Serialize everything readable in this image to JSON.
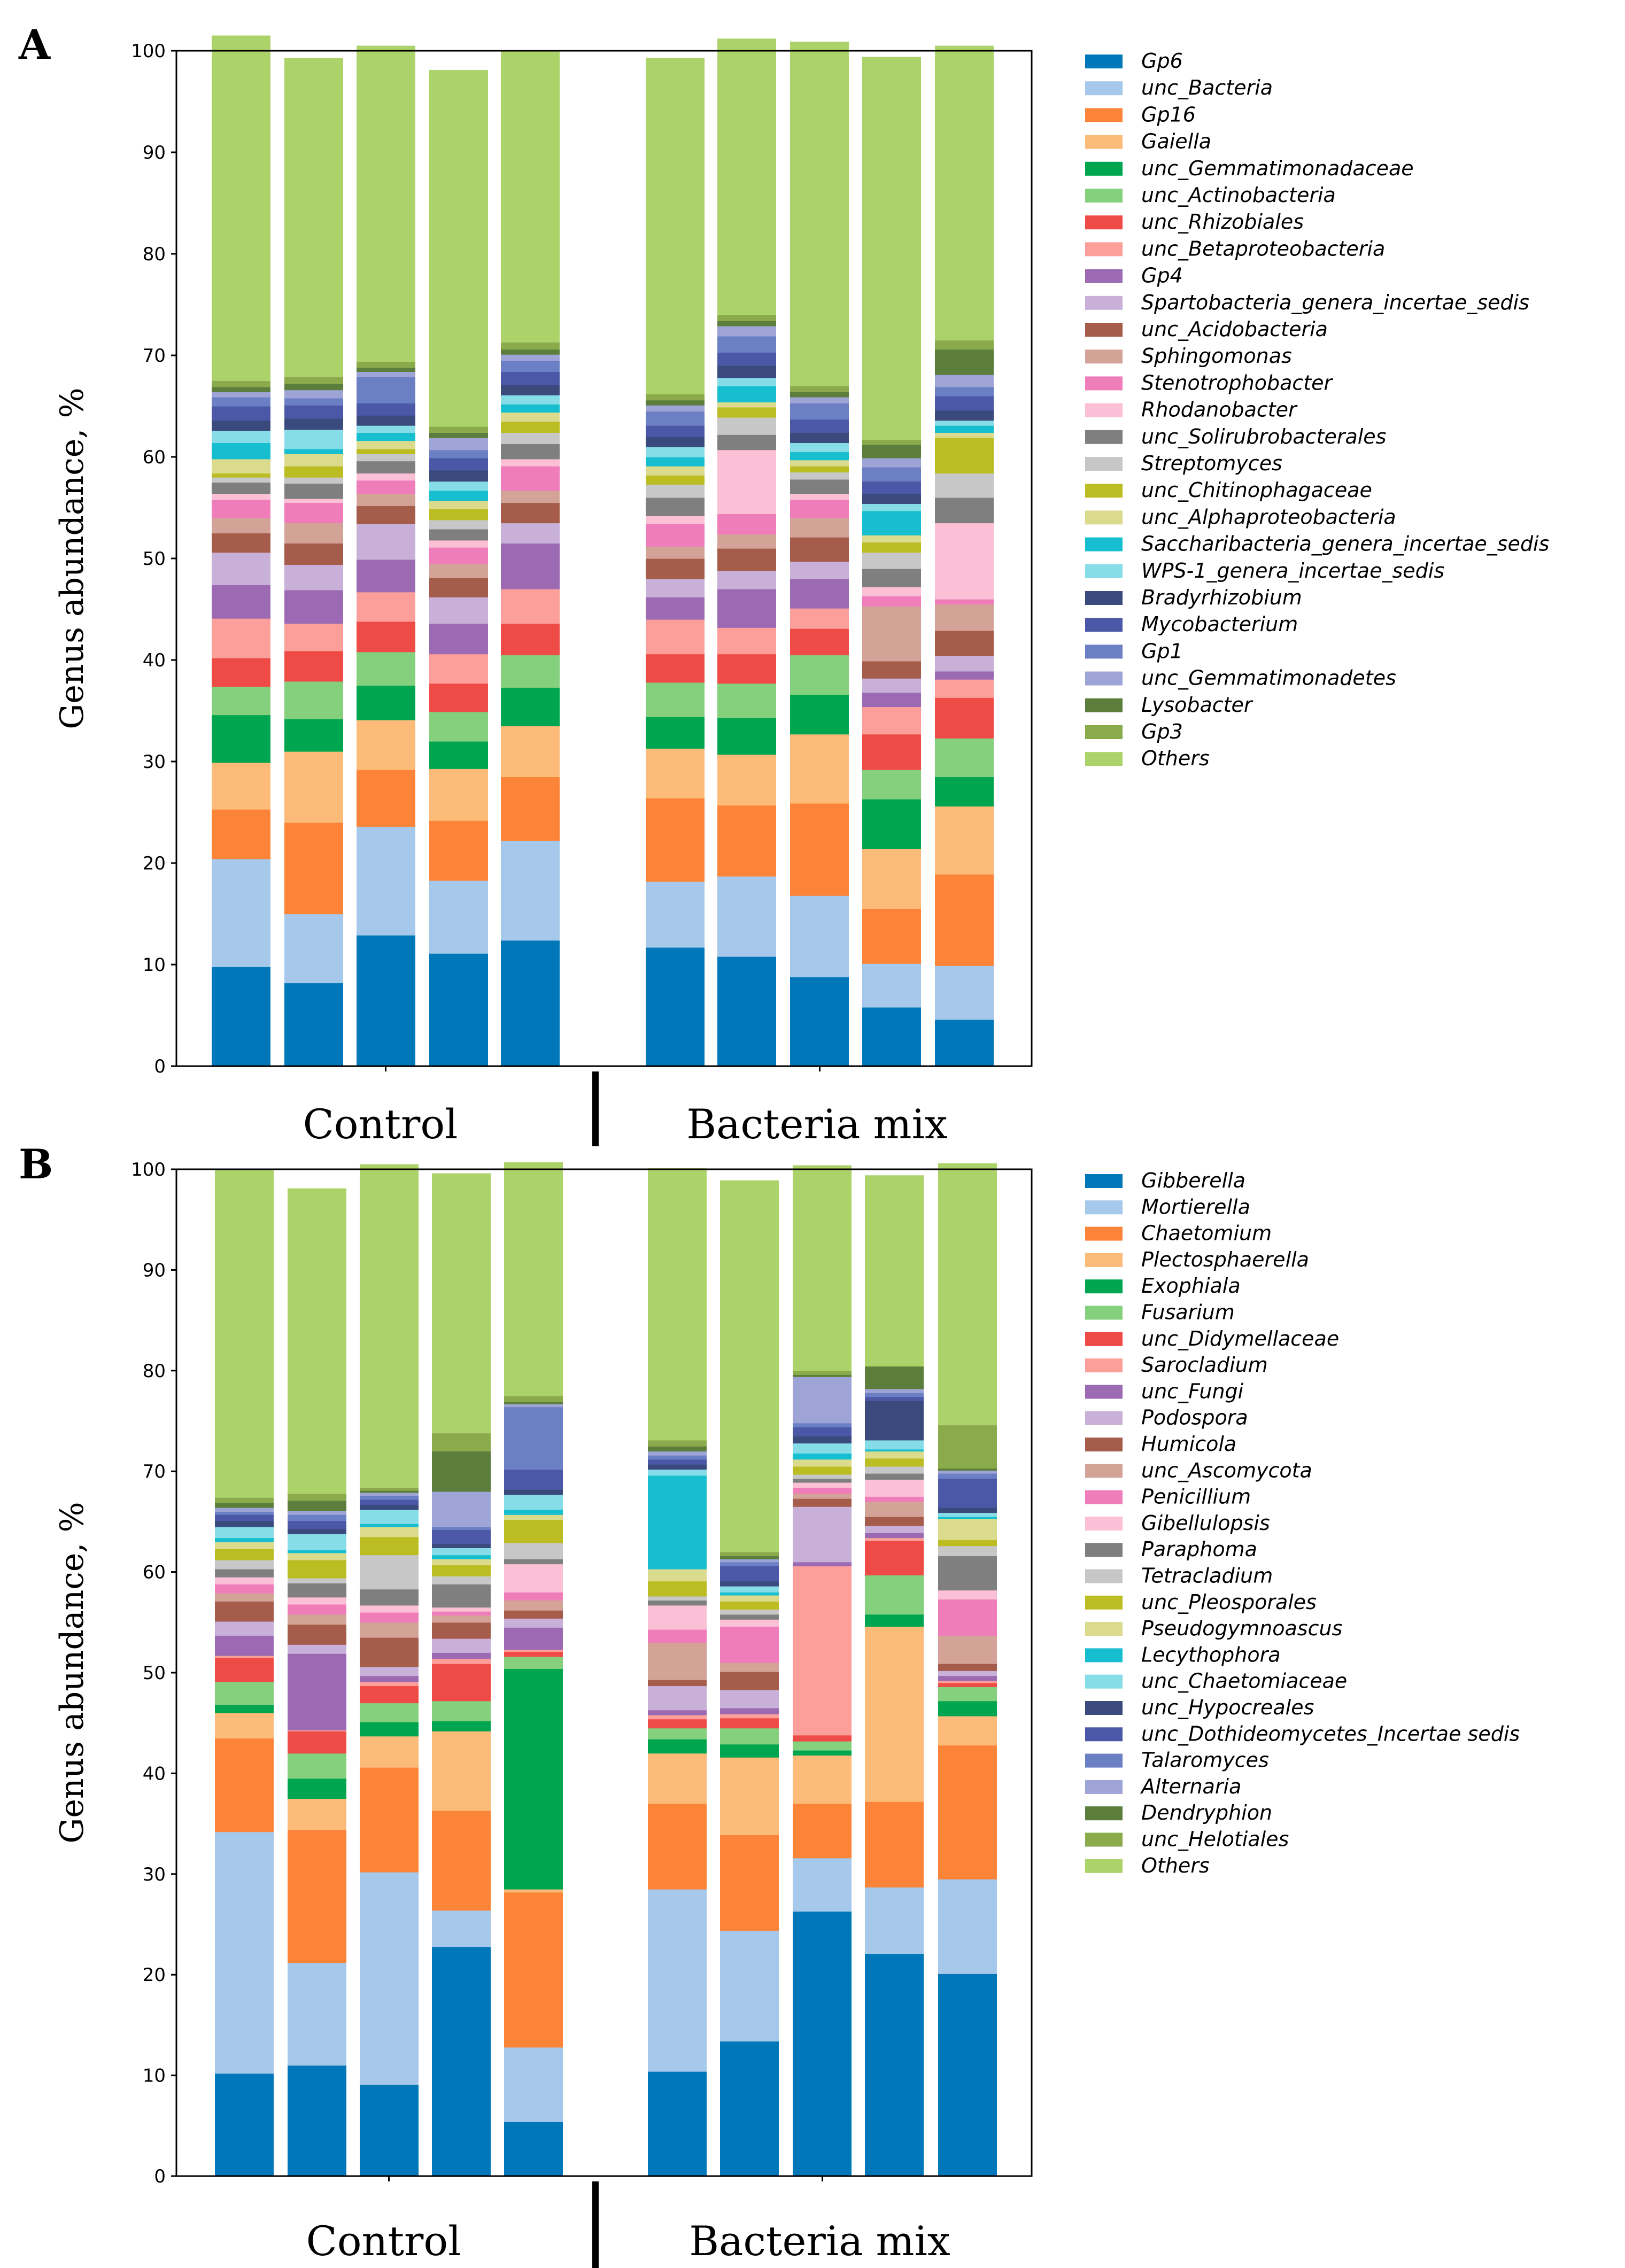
{
  "chart_data": [
    {
      "type": "bar",
      "panel_label": "A",
      "stacked": true,
      "ylabel": "Genus abundance, %",
      "ylim": [
        0,
        100
      ],
      "yticks": [
        "0",
        "10",
        "20",
        "30",
        "40",
        "50",
        "60",
        "70",
        "80",
        "90",
        "100"
      ],
      "group_labels": [
        "Control",
        "Bacteria mix"
      ],
      "bars_per_group": 5,
      "series": [
        {
          "name": "Gp6",
          "color": "#0077b8",
          "values": [
            9.8,
            8.2,
            12.9,
            11.1,
            12.4,
            11.7,
            10.8,
            8.8,
            5.8,
            4.6
          ]
        },
        {
          "name": "unc_Bacteria",
          "color": "#a6c8ea",
          "values": [
            10.6,
            6.8,
            10.7,
            7.2,
            9.8,
            6.5,
            7.9,
            8.0,
            4.3,
            5.3
          ]
        },
        {
          "name": "Gp16",
          "color": "#fc8438",
          "values": [
            4.9,
            9.0,
            5.6,
            5.9,
            6.3,
            8.2,
            7.0,
            9.1,
            5.4,
            9.0
          ]
        },
        {
          "name": "Gaiella",
          "color": "#fdbb7a",
          "values": [
            4.6,
            7.0,
            4.9,
            5.1,
            5.0,
            4.9,
            5.0,
            6.8,
            5.9,
            6.7
          ]
        },
        {
          "name": "unc_Gemmatimonadaceae",
          "color": "#00a550",
          "values": [
            4.7,
            3.2,
            3.4,
            2.7,
            3.8,
            3.1,
            3.6,
            3.9,
            4.9,
            2.9
          ]
        },
        {
          "name": "unc_Actinobacteria",
          "color": "#84d07c",
          "values": [
            2.8,
            3.7,
            3.3,
            2.9,
            3.2,
            3.4,
            3.4,
            3.9,
            2.9,
            3.8
          ]
        },
        {
          "name": "unc_Rhizobiales",
          "color": "#ef4b46",
          "values": [
            2.8,
            3.0,
            3.0,
            2.8,
            3.1,
            2.8,
            2.9,
            2.6,
            3.5,
            4.0
          ]
        },
        {
          "name": "unc_Betaproteobacteria",
          "color": "#fc9f9a",
          "values": [
            3.9,
            2.7,
            2.9,
            2.9,
            3.4,
            3.4,
            2.6,
            2.0,
            2.7,
            1.8
          ]
        },
        {
          "name": "Gp4",
          "color": "#9b6ab3",
          "values": [
            3.3,
            3.3,
            3.2,
            3.0,
            4.5,
            2.2,
            3.8,
            2.9,
            1.4,
            0.8
          ]
        },
        {
          "name": "Spartobacteria_genera_incertae_sedis",
          "color": "#c8b0d8",
          "values": [
            3.2,
            2.5,
            3.5,
            2.6,
            2.0,
            1.8,
            1.8,
            1.7,
            1.4,
            1.5
          ]
        },
        {
          "name": "unc_Acidobacteria",
          "color": "#a65c4a",
          "values": [
            1.9,
            2.1,
            1.8,
            1.9,
            2.0,
            2.0,
            2.2,
            2.4,
            1.7,
            2.5
          ]
        },
        {
          "name": "Sphingomonas",
          "color": "#d4a397",
          "values": [
            1.5,
            2.0,
            1.2,
            1.4,
            1.2,
            1.2,
            1.4,
            1.9,
            5.4,
            2.6
          ]
        },
        {
          "name": "Stenotrophobacter",
          "color": "#ef7dba",
          "values": [
            1.8,
            2.0,
            1.3,
            1.6,
            2.4,
            2.2,
            2.0,
            1.8,
            1.0,
            0.5
          ]
        },
        {
          "name": "Rhodanobacter",
          "color": "#fbbfd6",
          "values": [
            0.6,
            0.4,
            0.7,
            0.7,
            0.7,
            0.8,
            6.3,
            0.6,
            0.9,
            7.5
          ]
        },
        {
          "name": "unc_Solirubrobacterales",
          "color": "#7f7f7f",
          "values": [
            1.1,
            1.5,
            1.2,
            1.1,
            1.5,
            1.8,
            1.5,
            1.4,
            1.8,
            2.5
          ]
        },
        {
          "name": "Streptomyces",
          "color": "#c7c7c7",
          "values": [
            0.5,
            0.6,
            0.7,
            0.9,
            1.1,
            1.3,
            1.7,
            0.7,
            1.6,
            2.4
          ]
        },
        {
          "name": "unc_Chitinophagaceae",
          "color": "#bcbd22",
          "values": [
            0.4,
            1.1,
            0.5,
            1.1,
            1.1,
            0.9,
            1.0,
            0.6,
            1.0,
            3.5
          ]
        },
        {
          "name": "unc_Alphaproteobacteria",
          "color": "#dbdb8d",
          "values": [
            1.4,
            1.2,
            0.8,
            0.8,
            0.9,
            0.9,
            0.5,
            0.6,
            0.7,
            0.5
          ]
        },
        {
          "name": "Saccharibacteria_genera_incertae_sedis",
          "color": "#17becf",
          "values": [
            1.6,
            0.5,
            0.8,
            1.0,
            0.8,
            0.9,
            1.6,
            0.8,
            2.4,
            0.7
          ]
        },
        {
          "name": "WPS-1_genera_incertae_sedis",
          "color": "#86dde8",
          "values": [
            1.2,
            1.9,
            0.7,
            0.9,
            0.9,
            1.0,
            0.8,
            0.9,
            0.7,
            0.5
          ]
        },
        {
          "name": "Bradyrhizobium",
          "color": "#3b4a7d",
          "values": [
            1.0,
            1.1,
            1.0,
            1.1,
            1.0,
            1.0,
            1.2,
            1.0,
            1.0,
            1.0
          ]
        },
        {
          "name": "Mycobacterium",
          "color": "#4b57a7",
          "values": [
            1.4,
            1.3,
            1.2,
            1.2,
            1.3,
            1.1,
            1.3,
            1.3,
            1.2,
            1.4
          ]
        },
        {
          "name": "Gp1",
          "color": "#6b7fc4",
          "values": [
            0.9,
            0.7,
            2.6,
            0.8,
            1.1,
            1.4,
            1.6,
            1.6,
            1.4,
            0.9
          ]
        },
        {
          "name": "unc_Gemmatimonadetes",
          "color": "#9fa4d6",
          "values": [
            0.5,
            0.8,
            0.5,
            1.2,
            0.6,
            0.6,
            1.0,
            0.6,
            0.9,
            1.2
          ]
        },
        {
          "name": "Lysobacter",
          "color": "#5b7e3c",
          "values": [
            0.5,
            0.6,
            0.4,
            0.5,
            0.5,
            0.5,
            0.5,
            0.5,
            1.3,
            2.5
          ]
        },
        {
          "name": "Gp3",
          "color": "#8aaa4b",
          "values": [
            0.6,
            0.7,
            0.6,
            0.6,
            0.7,
            0.6,
            0.6,
            0.6,
            0.5,
            0.9
          ]
        },
        {
          "name": "Others",
          "color": "#acd369",
          "values": [
            34.0,
            31.4,
            31.1,
            35.1,
            28.7,
            33.1,
            27.2,
            33.9,
            37.7,
            29.0
          ]
        }
      ]
    },
    {
      "type": "bar",
      "panel_label": "B",
      "stacked": true,
      "ylabel": "Genus abundance, %",
      "ylim": [
        0,
        100
      ],
      "yticks": [
        "0",
        "10",
        "20",
        "30",
        "40",
        "50",
        "60",
        "70",
        "80",
        "90",
        "100"
      ],
      "group_labels": [
        "Control",
        "Bacteria mix"
      ],
      "bars_per_group": 5,
      "series": [
        {
          "name": "Gibberella",
          "color": "#0077b8",
          "values": [
            10.2,
            11.0,
            9.1,
            22.8,
            5.4,
            10.4,
            13.4,
            26.3,
            22.1,
            20.1
          ]
        },
        {
          "name": "Mortierella",
          "color": "#a6c8ea",
          "values": [
            24.0,
            10.2,
            21.1,
            3.6,
            7.4,
            18.1,
            11.0,
            5.3,
            6.6,
            9.4
          ]
        },
        {
          "name": "Chaetomium",
          "color": "#fc8438",
          "values": [
            9.3,
            13.2,
            10.4,
            9.9,
            15.4,
            8.5,
            9.5,
            5.4,
            8.5,
            13.3
          ]
        },
        {
          "name": "Plectosphaerella",
          "color": "#fdbb7a",
          "values": [
            2.5,
            3.1,
            3.1,
            7.9,
            0.3,
            5.0,
            7.7,
            4.8,
            17.4,
            2.9
          ]
        },
        {
          "name": "Exophiala",
          "color": "#00a550",
          "values": [
            0.8,
            2.0,
            1.4,
            1.0,
            21.9,
            1.4,
            1.3,
            0.5,
            1.2,
            1.5
          ]
        },
        {
          "name": "Fusarium",
          "color": "#84d07c",
          "values": [
            2.3,
            2.5,
            1.9,
            2.0,
            1.2,
            1.1,
            1.6,
            0.9,
            3.9,
            1.4
          ]
        },
        {
          "name": "unc_Didymellaceae",
          "color": "#ef4b46",
          "values": [
            2.4,
            2.2,
            1.7,
            3.7,
            0.5,
            0.9,
            1.0,
            0.6,
            3.4,
            0.4
          ]
        },
        {
          "name": "Sarocladium",
          "color": "#fc9f9a",
          "values": [
            0.2,
            0.1,
            0.4,
            0.5,
            0.2,
            0.4,
            0.4,
            16.8,
            0.3,
            0.2
          ]
        },
        {
          "name": "unc_Fungi",
          "color": "#9b6ab3",
          "values": [
            2.0,
            7.6,
            0.6,
            0.6,
            2.2,
            0.5,
            0.6,
            0.4,
            0.5,
            0.5
          ]
        },
        {
          "name": "Podospora",
          "color": "#c8b0d8",
          "values": [
            1.4,
            0.9,
            0.9,
            1.4,
            0.9,
            2.4,
            1.8,
            5.5,
            0.7,
            0.5
          ]
        },
        {
          "name": "Humicola",
          "color": "#a65c4a",
          "values": [
            2.0,
            2.0,
            2.9,
            1.6,
            0.8,
            0.6,
            1.8,
            0.8,
            0.9,
            0.7
          ]
        },
        {
          "name": "unc_Ascomycota",
          "color": "#d4a397",
          "values": [
            0.8,
            1.0,
            1.5,
            0.7,
            1.0,
            3.7,
            0.9,
            0.5,
            1.5,
            2.8
          ]
        },
        {
          "name": "Penicillium",
          "color": "#ef7dba",
          "values": [
            0.9,
            1.0,
            1.0,
            0.4,
            0.8,
            1.3,
            3.6,
            0.6,
            0.5,
            3.6
          ]
        },
        {
          "name": "Gibellulopsis",
          "color": "#fbbfd6",
          "values": [
            0.7,
            0.7,
            0.7,
            0.4,
            2.8,
            2.4,
            0.7,
            0.5,
            1.7,
            0.9
          ]
        },
        {
          "name": "Paraphoma",
          "color": "#7f7f7f",
          "values": [
            0.8,
            1.4,
            1.6,
            2.3,
            0.5,
            0.5,
            0.5,
            0.4,
            0.6,
            3.4
          ]
        },
        {
          "name": "Tetracladium",
          "color": "#c7c7c7",
          "values": [
            0.9,
            0.5,
            3.4,
            0.8,
            1.6,
            0.4,
            0.5,
            0.4,
            0.7,
            1.0
          ]
        },
        {
          "name": "unc_Pleosporales",
          "color": "#bcbd22",
          "values": [
            1.1,
            1.8,
            1.8,
            1.1,
            2.3,
            1.5,
            0.8,
            0.8,
            0.8,
            0.6
          ]
        },
        {
          "name": "Pseudogymnoascus",
          "color": "#dbdb8d",
          "values": [
            0.7,
            0.7,
            1.0,
            0.6,
            0.5,
            1.2,
            0.6,
            0.7,
            0.7,
            2.1
          ]
        },
        {
          "name": "Lecythophora",
          "color": "#17becf",
          "values": [
            0.4,
            0.3,
            0.3,
            0.4,
            0.5,
            9.3,
            0.3,
            0.6,
            0.2,
            0.2
          ]
        },
        {
          "name": "unc_Chaetomiaceae",
          "color": "#86dde8",
          "values": [
            1.1,
            1.6,
            1.4,
            0.7,
            1.5,
            0.6,
            0.6,
            1.0,
            0.9,
            0.4
          ]
        },
        {
          "name": "unc_Hypocreales",
          "color": "#3b4a7d",
          "values": [
            0.6,
            0.5,
            0.5,
            0.4,
            0.5,
            0.5,
            0.5,
            0.7,
            3.9,
            0.5
          ]
        },
        {
          "name": "unc_Dothideomycetes_Incertae sedis",
          "color": "#4b57a7",
          "values": [
            0.6,
            0.8,
            0.5,
            1.4,
            2.0,
            0.5,
            1.5,
            0.9,
            0.4,
            2.9
          ]
        },
        {
          "name": "Talaromyces",
          "color": "#6b7fc4",
          "values": [
            0.3,
            0.6,
            0.4,
            0.3,
            6.2,
            0.4,
            0.4,
            0.4,
            0.4,
            0.5
          ]
        },
        {
          "name": "Alternaria",
          "color": "#9fa4d6",
          "values": [
            0.4,
            0.4,
            0.3,
            3.5,
            0.3,
            0.4,
            0.3,
            4.6,
            0.4,
            0.3
          ]
        },
        {
          "name": "Dendryphion",
          "color": "#5b7e3c",
          "values": [
            0.5,
            1.0,
            0.2,
            4.0,
            0.2,
            0.5,
            0.3,
            0.2,
            2.2,
            0.2
          ]
        },
        {
          "name": "unc_Helotiales",
          "color": "#8aaa4b",
          "values": [
            0.5,
            0.7,
            0.3,
            1.8,
            0.6,
            0.6,
            0.4,
            0.4,
            0.1,
            4.3
          ]
        },
        {
          "name": "Others",
          "color": "#acd369",
          "values": [
            32.6,
            30.3,
            32.1,
            25.8,
            23.2,
            27.0,
            36.9,
            20.4,
            18.9,
            26.0
          ]
        }
      ]
    }
  ]
}
